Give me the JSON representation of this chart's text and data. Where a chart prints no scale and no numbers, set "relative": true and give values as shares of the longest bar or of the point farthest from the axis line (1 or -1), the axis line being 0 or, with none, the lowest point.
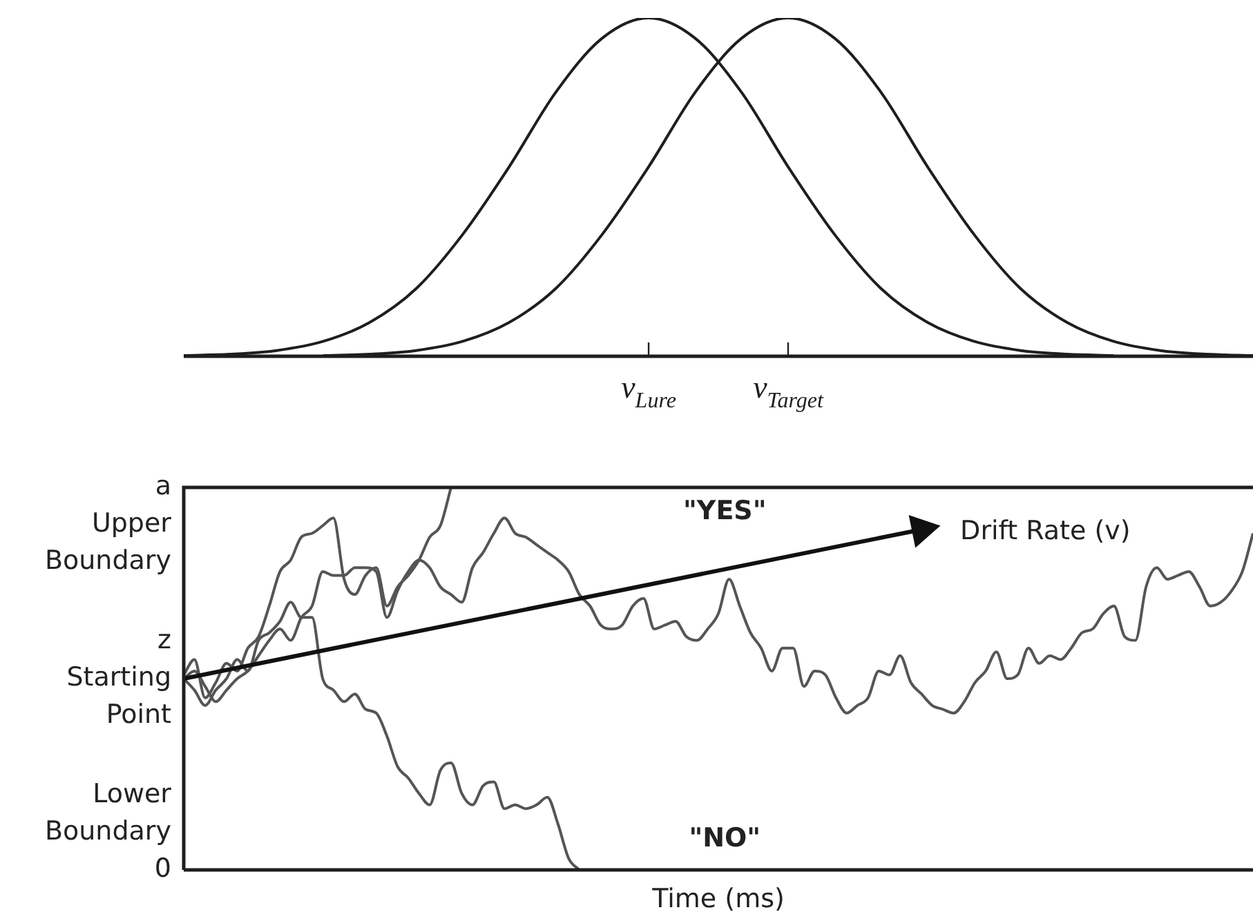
{
  "chart_data": [
    {
      "type": "line",
      "relative": true,
      "marker": "none",
      "tick_labels": "x",
      "categories": [
        null,
        null,
        null,
        null,
        null,
        null,
        null,
        null,
        null,
        null,
        "v$_{Lure}$",
        null,
        null,
        "v$_{Target}$",
        null,
        null,
        null,
        null,
        null,
        null,
        null,
        null,
        null,
        null
      ],
      "series": [
        {
          "color": "#1e1e1e",
          "values": [
            0.002,
            0.006,
            0.017,
            0.044,
            0.1,
            0.2,
            0.36,
            0.56,
            0.78,
            0.94,
            1,
            0.94,
            0.78,
            0.56,
            0.36,
            0.2,
            0.1,
            0.044,
            0.017,
            0.006,
            0.002,
            null,
            null,
            null
          ]
        },
        {
          "color": "#1e1e1e",
          "values": [
            null,
            null,
            null,
            0.002,
            0.006,
            0.017,
            0.044,
            0.1,
            0.2,
            0.36,
            0.56,
            0.78,
            0.94,
            1,
            0.94,
            0.78,
            0.56,
            0.36,
            0.2,
            0.1,
            0.044,
            0.017,
            0.006,
            0.002
          ]
        }
      ]
    },
    {
      "type": "line",
      "relative": true,
      "marker": "none",
      "tick_labels": false,
      "xlabel": "Time (ms)",
      "categories": [
        null,
        null,
        null,
        null,
        null,
        null,
        null,
        null,
        null,
        null,
        null,
        null,
        null,
        null,
        null,
        null,
        null,
        null,
        null,
        null,
        null,
        null,
        null,
        null,
        null,
        null,
        null,
        null,
        null,
        null,
        null,
        null,
        null,
        null,
        null,
        null,
        null,
        null,
        null,
        null,
        null,
        null,
        null,
        null,
        null,
        null,
        null,
        null,
        null,
        null,
        null,
        null,
        null,
        null,
        null,
        null,
        null,
        null,
        null,
        null,
        null,
        null,
        null,
        null,
        null,
        null,
        null,
        null,
        null,
        null,
        null,
        null,
        null,
        null,
        null,
        null,
        null,
        null,
        null,
        null,
        null,
        null,
        null,
        null,
        null,
        null,
        null,
        null,
        null,
        null,
        null,
        null,
        null,
        null,
        null,
        null,
        null,
        null,
        null,
        null,
        null
      ],
      "annotations": [
        "a\nUpper\nBoundary",
        "z\nStarting\nPoint",
        "Lower\nBoundary\n0",
        "\"YES\"",
        "\"NO\""
      ],
      "series": [
        {
          "color": "#555555",
          "values": [
            0.51,
            0.55,
            0.45,
            0.49,
            0.54,
            0.52,
            0.58,
            0.61,
            0.69,
            0.78,
            0.81,
            0.87,
            0.88,
            0.9,
            0.92,
            0.76,
            0.72,
            0.77,
            0.79,
            0.69,
            0.74,
            0.77,
            0.81,
            0.87,
            0.9,
            1,
            null,
            null,
            null,
            null,
            null,
            null,
            null,
            null,
            null,
            null,
            null,
            null,
            null,
            null,
            null,
            null,
            null,
            null,
            null,
            null,
            null,
            null,
            null,
            null,
            null,
            null,
            null,
            null,
            null,
            null,
            null,
            null,
            null,
            null,
            null,
            null,
            null,
            null,
            null,
            null,
            null,
            null,
            null,
            null,
            null,
            null,
            null,
            null,
            null,
            null,
            null,
            null,
            null,
            null,
            null,
            null,
            null,
            null,
            null,
            null,
            null,
            null,
            null,
            null,
            null,
            null,
            null,
            null,
            null,
            null,
            null,
            null,
            null,
            null,
            null
          ]
        },
        {
          "color": "#555555",
          "values": [
            0.5,
            0.47,
            0.43,
            0.47,
            0.5,
            0.55,
            0.52,
            0.6,
            0.62,
            0.65,
            0.7,
            0.66,
            0.66,
            0.5,
            0.47,
            0.44,
            0.46,
            0.42,
            0.41,
            0.35,
            0.27,
            0.24,
            0.2,
            0.17,
            0.26,
            0.28,
            0.2,
            0.17,
            0.22,
            0.23,
            0.16,
            0.17,
            0.16,
            0.17,
            0.19,
            0.12,
            0.03,
            0,
            null,
            null,
            null,
            null,
            null,
            null,
            null,
            null,
            null,
            null,
            null,
            null,
            null,
            null,
            null,
            null,
            null,
            null,
            null,
            null,
            null,
            null,
            null,
            null,
            null,
            null,
            null,
            null,
            null,
            null,
            null,
            null,
            null,
            null,
            null,
            null,
            null,
            null,
            null,
            null,
            null,
            null,
            null,
            null,
            null,
            null,
            null,
            null,
            null,
            null,
            null,
            null,
            null,
            null,
            null,
            null,
            null,
            null,
            null,
            null,
            null,
            null,
            null
          ]
        },
        {
          "color": "#555555",
          "values": [
            0.5,
            0.52,
            0.48,
            0.44,
            0.47,
            0.5,
            0.52,
            0.56,
            0.6,
            0.63,
            0.6,
            0.66,
            0.69,
            0.78,
            0.77,
            0.77,
            0.79,
            0.79,
            0.78,
            0.66,
            0.73,
            0.78,
            0.81,
            0.79,
            0.74,
            0.72,
            0.7,
            0.79,
            0.83,
            0.88,
            0.92,
            0.88,
            0.87,
            0.85,
            0.83,
            0.81,
            0.78,
            0.72,
            0.69,
            0.64,
            0.63,
            0.64,
            0.69,
            0.71,
            0.63,
            0.64,
            0.65,
            0.61,
            0.6,
            0.63,
            0.67,
            0.76,
            0.69,
            0.62,
            0.58,
            0.52,
            0.58,
            0.58,
            0.48,
            0.52,
            0.51,
            0.45,
            0.41,
            0.43,
            0.45,
            0.52,
            0.51,
            0.56,
            0.49,
            0.46,
            0.43,
            0.42,
            0.41,
            0.44,
            0.49,
            0.52,
            0.57,
            0.5,
            0.51,
            0.58,
            0.54,
            0.56,
            0.55,
            0.58,
            0.62,
            0.63,
            0.67,
            0.69,
            0.61,
            0.6,
            0.74,
            0.79,
            0.76,
            0.77,
            0.78,
            0.74,
            0.69,
            0.7,
            0.73,
            0.78,
            0.88
          ]
        },
        {
          "name": "Drift Rate (v)",
          "color": "#111111",
          "marker": "triangle",
          "values": [
            0.5,
            null,
            null,
            null,
            null,
            null,
            null,
            null,
            null,
            null,
            null,
            null,
            null,
            null,
            null,
            null,
            null,
            null,
            null,
            null,
            null,
            null,
            null,
            null,
            null,
            null,
            null,
            null,
            null,
            null,
            null,
            null,
            null,
            null,
            null,
            null,
            null,
            null,
            null,
            null,
            null,
            null,
            null,
            null,
            null,
            null,
            null,
            null,
            null,
            null,
            null,
            null,
            null,
            null,
            null,
            null,
            null,
            null,
            null,
            null,
            null,
            null,
            null,
            null,
            null,
            null,
            null,
            null,
            null,
            0.89,
            null,
            null,
            null,
            null,
            null,
            null,
            null,
            null,
            null,
            null,
            null,
            null,
            null,
            null,
            null,
            null,
            null,
            null,
            null,
            null,
            null,
            null,
            null,
            null,
            null,
            null,
            null,
            null,
            null,
            null,
            null
          ]
        }
      ]
    }
  ]
}
